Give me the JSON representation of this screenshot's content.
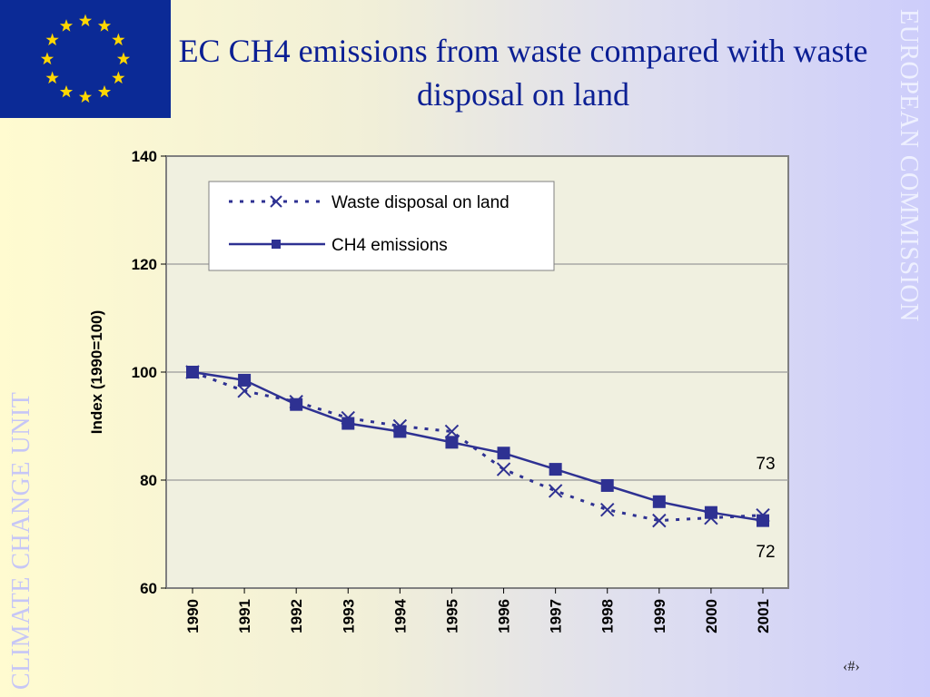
{
  "slide": {
    "title": "EC CH4 emissions from waste compared with waste disposal on land",
    "side_right": "EUROPEAN COMMISSION",
    "side_left": "CLIMATE CHANGE UNIT",
    "page_number": "‹#›"
  },
  "flag": {
    "icon": "eu-flag-icon",
    "background": "#0b2a96",
    "star_color": "#ffd700"
  },
  "colors": {
    "series": "#2e3192",
    "title": "#0b1f94"
  },
  "chart_data": {
    "type": "line",
    "title": "",
    "xlabel": "",
    "ylabel": "Index (1990=100)",
    "ylim": [
      60,
      140
    ],
    "yticks": [
      "60",
      "80",
      "100",
      "120",
      "140"
    ],
    "grid": true,
    "legend_position": "top-left",
    "x": [
      "1990",
      "1991",
      "1992",
      "1993",
      "1994",
      "1995",
      "1996",
      "1997",
      "1998",
      "1999",
      "2000",
      "2001"
    ],
    "series": [
      {
        "name": "Waste disposal on land",
        "style": "dotted-x",
        "values": [
          100,
          96.5,
          94.5,
          91.5,
          90,
          89,
          82,
          78,
          74.5,
          72.5,
          73,
          73.5
        ]
      },
      {
        "name": "CH4 emissions",
        "style": "solid-square",
        "values": [
          100,
          98.5,
          94,
          90.5,
          89,
          87,
          85,
          82,
          79,
          76,
          74,
          72.5
        ]
      }
    ],
    "annotations": [
      "73",
      "72"
    ]
  }
}
